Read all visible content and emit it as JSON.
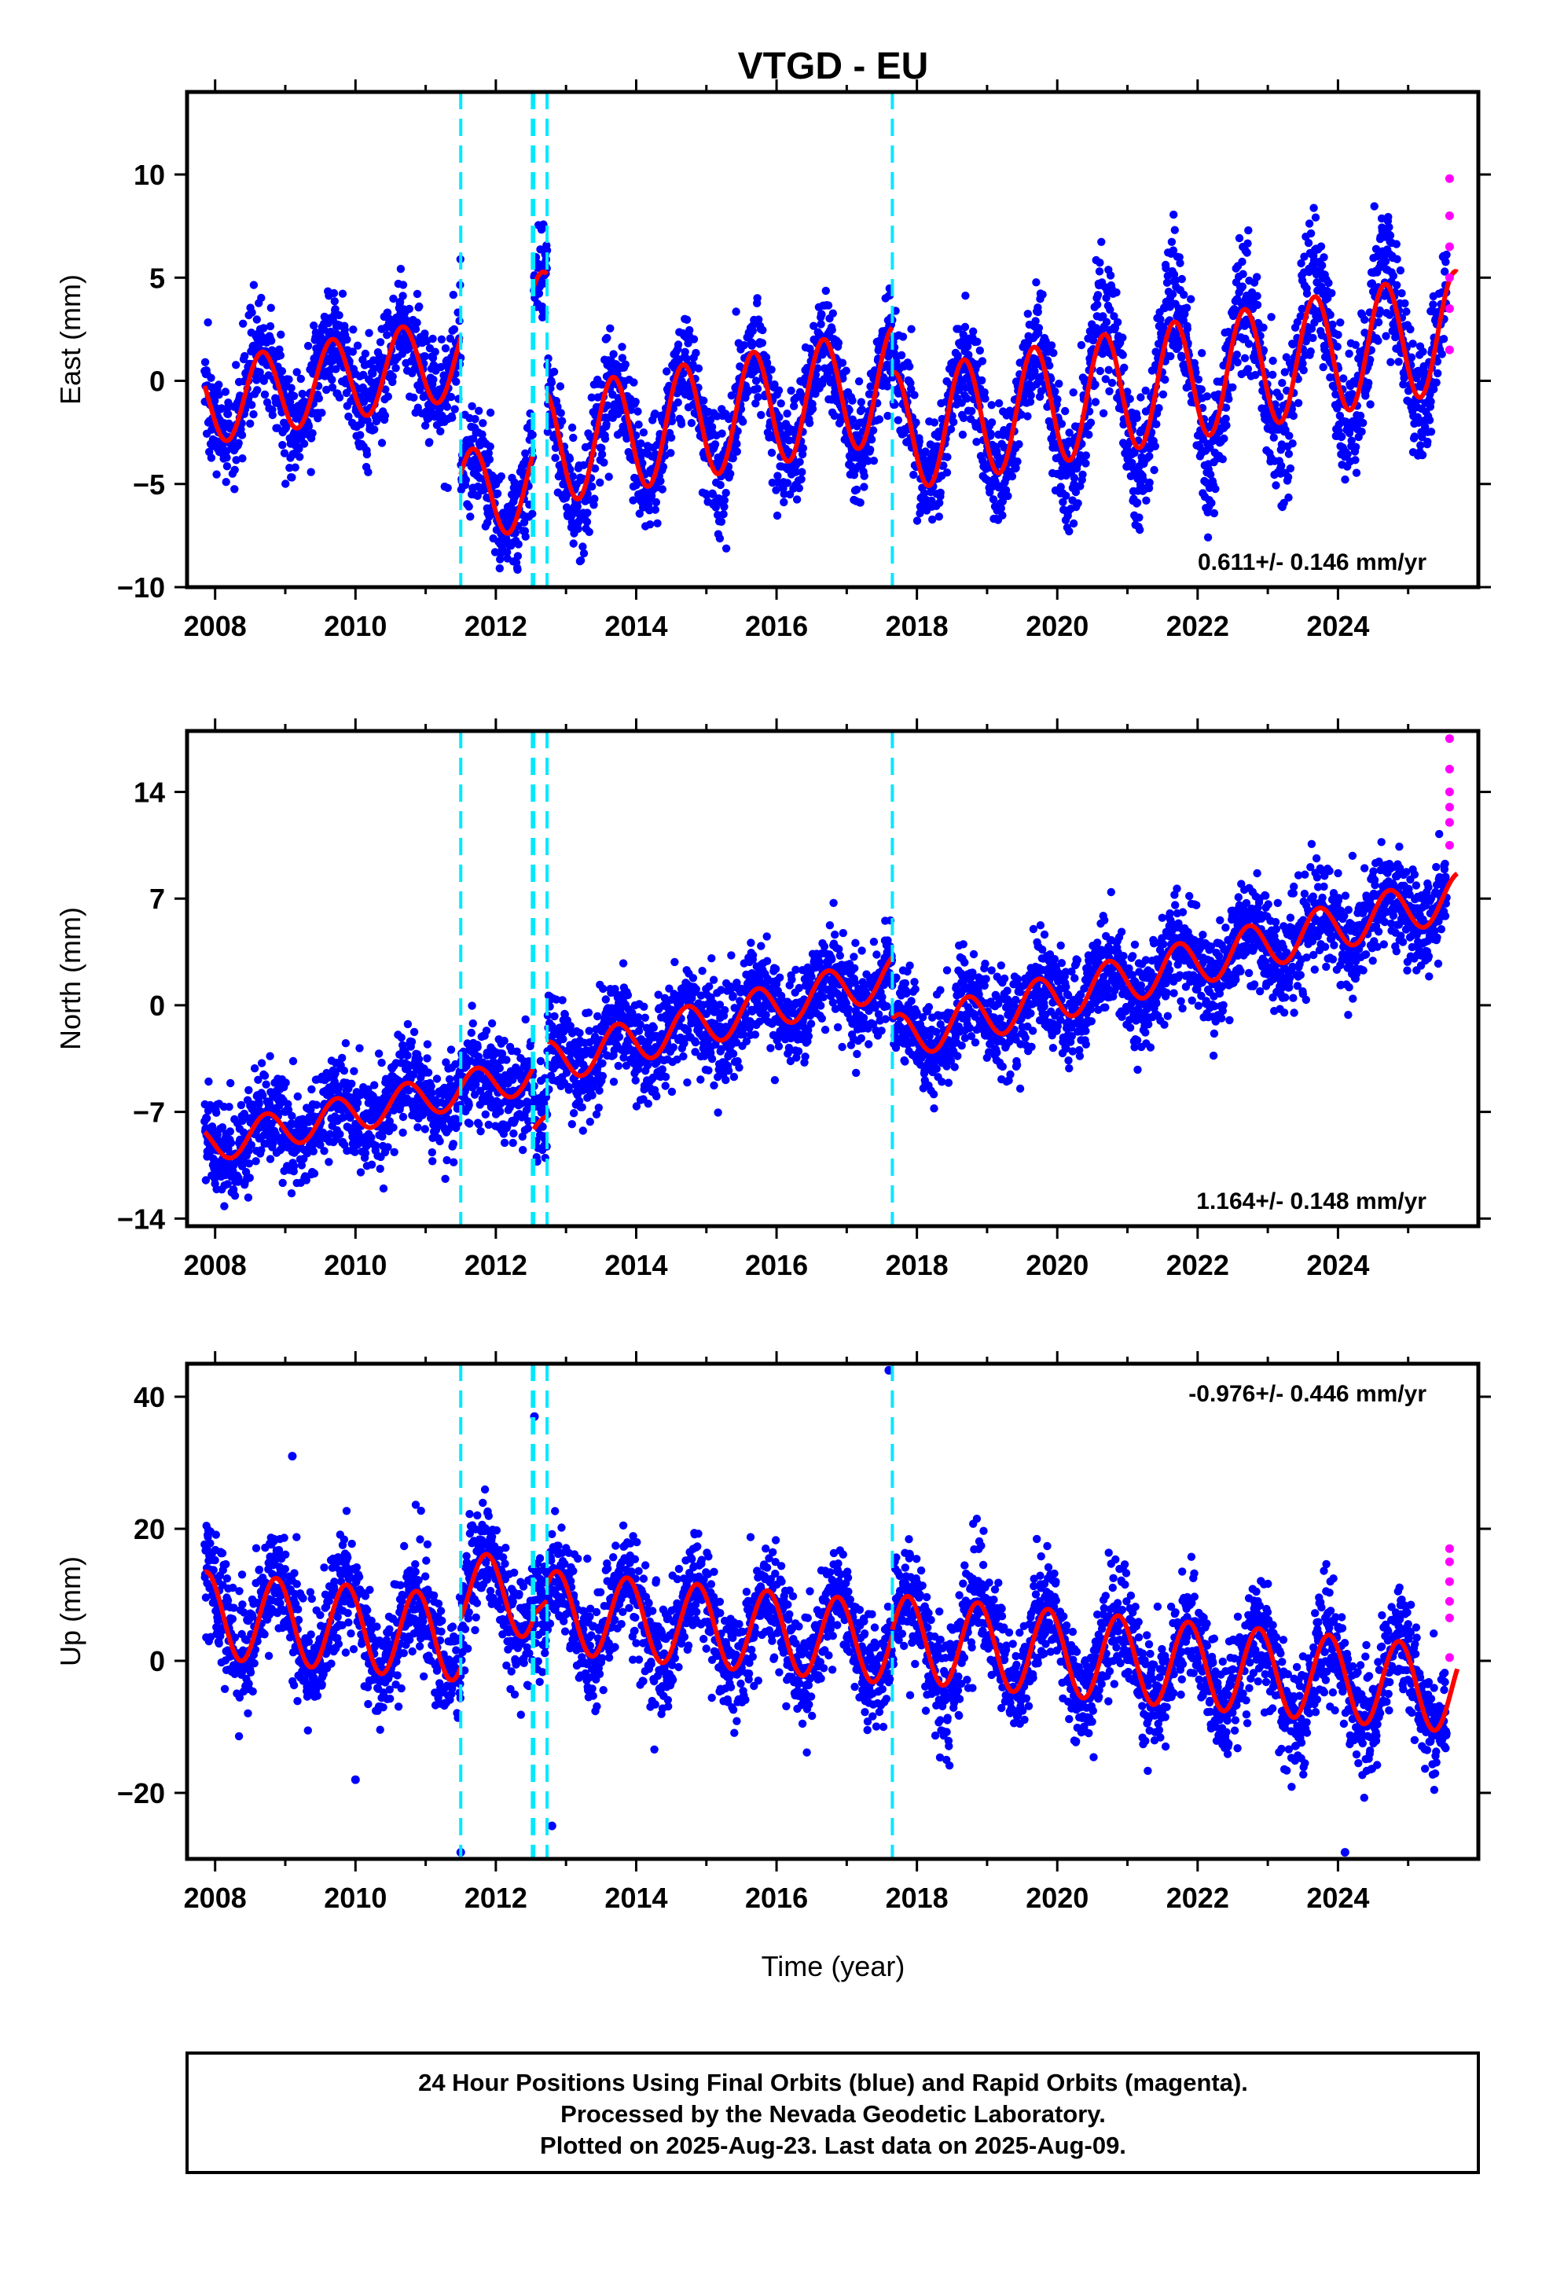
{
  "title": "VTGD - EU",
  "xlabel": "Time (year)",
  "footer": {
    "line1": "24 Hour Positions Using Final Orbits (blue) and Rapid Orbits (magenta).",
    "line2": "Processed by the Nevada Geodetic Laboratory.",
    "line3": "Plotted on 2025-Aug-23. Last data on 2025-Aug-09."
  },
  "colors": {
    "final_orbits": "#0000ff",
    "rapid_orbits": "#ff00ff",
    "model_fit": "#ff0000",
    "event_lines": "#00e8ff",
    "frame": "#000000"
  },
  "chart_data": [
    {
      "type": "scatter",
      "component": "east",
      "ylabel": "East (mm)",
      "ylim": [
        -10,
        14
      ],
      "yticks": [
        -10,
        -5,
        0,
        5,
        10
      ],
      "xlim": [
        2007.6,
        2026.0
      ],
      "xticks": [
        2008,
        2010,
        2012,
        2014,
        2016,
        2018,
        2020,
        2022,
        2024
      ],
      "rate_text": "0.611+/- 0.146 mm/yr",
      "rate_position": "bottom-right",
      "event_lines": [
        2011.5,
        2012.52,
        2012.54,
        2012.73,
        2017.65
      ],
      "series": [
        {
          "role": "final",
          "x_start": 2007.85,
          "x_end": 2025.55
        },
        {
          "role": "rapid",
          "x": [
            2025.59,
            2025.59,
            2025.59,
            2025.59,
            2025.59,
            2025.59
          ],
          "values": [
            9.8,
            6.5,
            3.5,
            1.5,
            5.0,
            8.0
          ]
        }
      ],
      "fit_segments": [
        {
          "x_start": 2007.85,
          "x_end": 2011.5,
          "offset": -1.1,
          "trend": 0.611,
          "amp": 2.0,
          "phase": 0.42
        },
        {
          "x_start": 2011.5,
          "x_end": 2012.53,
          "offset": -5.6,
          "trend": 0.611,
          "amp": 2.2,
          "phase": 0.42
        },
        {
          "x_start": 2012.54,
          "x_end": 2012.73,
          "offset": 3.2,
          "trend": 0.611,
          "amp": 2.0,
          "phase": 0.42
        },
        {
          "x_start": 2012.73,
          "x_end": 2017.65,
          "offset": -3.2,
          "trend": 0.611,
          "amp": 2.8,
          "phase": 0.42
        },
        {
          "x_start": 2017.65,
          "x_end": 2025.7,
          "offset": -2.5,
          "trend": 0.611,
          "amp": 2.9,
          "phase": 0.42
        }
      ]
    },
    {
      "type": "scatter",
      "component": "north",
      "ylabel": "North (mm)",
      "ylim": [
        -14.5,
        18
      ],
      "yticks": [
        -14,
        -7,
        0,
        7,
        14
      ],
      "xlim": [
        2007.6,
        2026.0
      ],
      "xticks": [
        2008,
        2010,
        2012,
        2014,
        2016,
        2018,
        2020,
        2022,
        2024
      ],
      "rate_text": "1.164+/- 0.148 mm/yr",
      "rate_position": "bottom-right",
      "event_lines": [
        2011.5,
        2012.52,
        2012.54,
        2012.73,
        2017.65
      ],
      "series": [
        {
          "role": "final",
          "x_start": 2007.85,
          "x_end": 2025.55
        },
        {
          "role": "rapid",
          "x": [
            2025.59,
            2025.59,
            2025.59,
            2025.59,
            2025.59,
            2025.59
          ],
          "values": [
            17.5,
            15.5,
            14.0,
            13.0,
            12.0,
            10.5
          ]
        }
      ],
      "fit_segments": [
        {
          "x_start": 2007.85,
          "x_end": 2012.53,
          "offset": -9.2,
          "trend": 1.0,
          "amp": 1.2,
          "phase": 0.48
        },
        {
          "x_start": 2012.54,
          "x_end": 2012.73,
          "offset": -8.5,
          "trend": 1.0,
          "amp": 1.0,
          "phase": 0.48
        },
        {
          "x_start": 2012.73,
          "x_end": 2017.65,
          "offset": -3.8,
          "trend": 1.164,
          "amp": 1.4,
          "phase": 0.48
        },
        {
          "x_start": 2017.65,
          "x_end": 2025.7,
          "offset": -2.2,
          "trend": 1.164,
          "amp": 1.5,
          "phase": 0.48
        }
      ]
    },
    {
      "type": "scatter",
      "component": "up",
      "ylabel": "Up (mm)",
      "ylim": [
        -30,
        45
      ],
      "yticks": [
        -20,
        0,
        20,
        40
      ],
      "xlim": [
        2007.6,
        2026.0
      ],
      "xticks": [
        2008,
        2010,
        2012,
        2014,
        2016,
        2018,
        2020,
        2022,
        2024
      ],
      "rate_text": "-0.976+/- 0.446 mm/yr",
      "rate_position": "top-right",
      "event_lines": [
        2011.5,
        2012.52,
        2012.54,
        2012.73,
        2017.65
      ],
      "series": [
        {
          "role": "final",
          "x_start": 2007.85,
          "x_end": 2025.55
        },
        {
          "role": "rapid",
          "x": [
            2025.59,
            2025.59,
            2025.59,
            2025.59,
            2025.59,
            2025.59
          ],
          "values": [
            17.0,
            15.0,
            12.0,
            9.0,
            6.5,
            0.5
          ]
        }
      ],
      "outliers": [
        {
          "x": 2009.1,
          "y": 31
        },
        {
          "x": 2012.55,
          "y": 37
        },
        {
          "x": 2017.6,
          "y": 44
        },
        {
          "x": 2011.5,
          "y": -29
        },
        {
          "x": 2012.8,
          "y": -25
        },
        {
          "x": 2010.0,
          "y": -18
        },
        {
          "x": 2024.1,
          "y": -29
        }
      ],
      "fit_segments": [
        {
          "x_start": 2007.85,
          "x_end": 2011.5,
          "offset": 7.0,
          "trend": -0.976,
          "amp": 6.5,
          "phase": 0.62
        },
        {
          "x_start": 2011.5,
          "x_end": 2012.53,
          "offset": 10.5,
          "trend": -0.976,
          "amp": 6.0,
          "phase": 0.62
        },
        {
          "x_start": 2012.54,
          "x_end": 2012.73,
          "offset": 8.0,
          "trend": -0.976,
          "amp": 2.0,
          "phase": 0.62
        },
        {
          "x_start": 2012.73,
          "x_end": 2017.65,
          "offset": 7.5,
          "trend": -0.976,
          "amp": 6.2,
          "phase": 0.62
        },
        {
          "x_start": 2017.65,
          "x_end": 2025.7,
          "offset": 3.5,
          "trend": -0.976,
          "amp": 6.5,
          "phase": 0.62
        }
      ]
    }
  ]
}
